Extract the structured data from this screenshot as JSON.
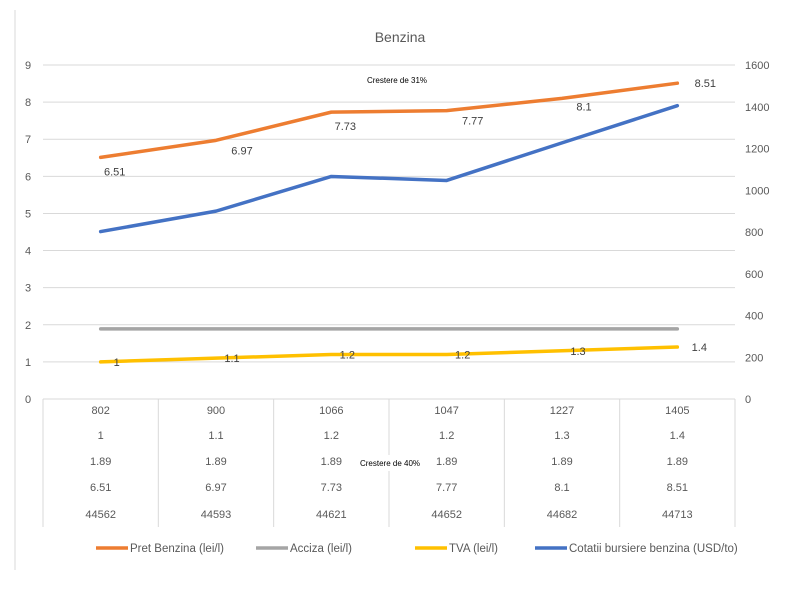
{
  "chart_data": {
    "type": "line",
    "title": "Benzina",
    "categories": [
      "44562",
      "44593",
      "44621",
      "44652",
      "44682",
      "44713"
    ],
    "y_left": {
      "range": [
        0,
        9
      ],
      "ticks": [
        "0",
        "1",
        "2",
        "3",
        "4",
        "5",
        "6",
        "7",
        "8",
        "9"
      ]
    },
    "y_right": {
      "range": [
        0,
        1600
      ],
      "ticks": [
        "0",
        "200",
        "400",
        "600",
        "800",
        "1000",
        "1200",
        "1400",
        "1600"
      ]
    },
    "grid": true,
    "legend_position": "bottom",
    "series": [
      {
        "name": "Pret Benzina (lei/l)",
        "axis": "left",
        "color": "#ED7D31",
        "values": [
          6.51,
          6.97,
          7.73,
          7.77,
          8.1,
          8.51
        ],
        "labels": [
          "6.51",
          "6.97",
          "7.73",
          "7.77",
          "8.1",
          "8.51"
        ]
      },
      {
        "name": "Acciza (lei/l)",
        "axis": "left",
        "color": "#A5A5A5",
        "values": [
          1.89,
          1.89,
          1.89,
          1.89,
          1.89,
          1.89
        ]
      },
      {
        "name": "TVA (lei/l)",
        "axis": "left",
        "color": "#FFC000",
        "values": [
          1,
          1.1,
          1.2,
          1.2,
          1.3,
          1.4
        ],
        "labels": [
          "1",
          "1.1",
          "1.2",
          "1.2",
          "1.3",
          "1.4"
        ]
      },
      {
        "name": "Cotatii bursiere benzina (USD/to)",
        "axis": "right",
        "color": "#4472C4",
        "values": [
          802,
          900,
          1066,
          1047,
          1227,
          1405
        ]
      }
    ],
    "data_table": [
      [
        "802",
        "900",
        "1066",
        "1047",
        "1227",
        "1405"
      ],
      [
        "1",
        "1.1",
        "1.2",
        "1.2",
        "1.3",
        "1.4"
      ],
      [
        "1.89",
        "1.89",
        "1.89",
        "1.89",
        "1.89",
        "1.89"
      ],
      [
        "6.51",
        "6.97",
        "7.73",
        "7.77",
        "8.1",
        "8.51"
      ],
      [
        "44562",
        "44593",
        "44621",
        "44652",
        "44682",
        "44713"
      ]
    ],
    "annotations": [
      "Crestere de 31%",
      "Crestere de 40%"
    ]
  }
}
